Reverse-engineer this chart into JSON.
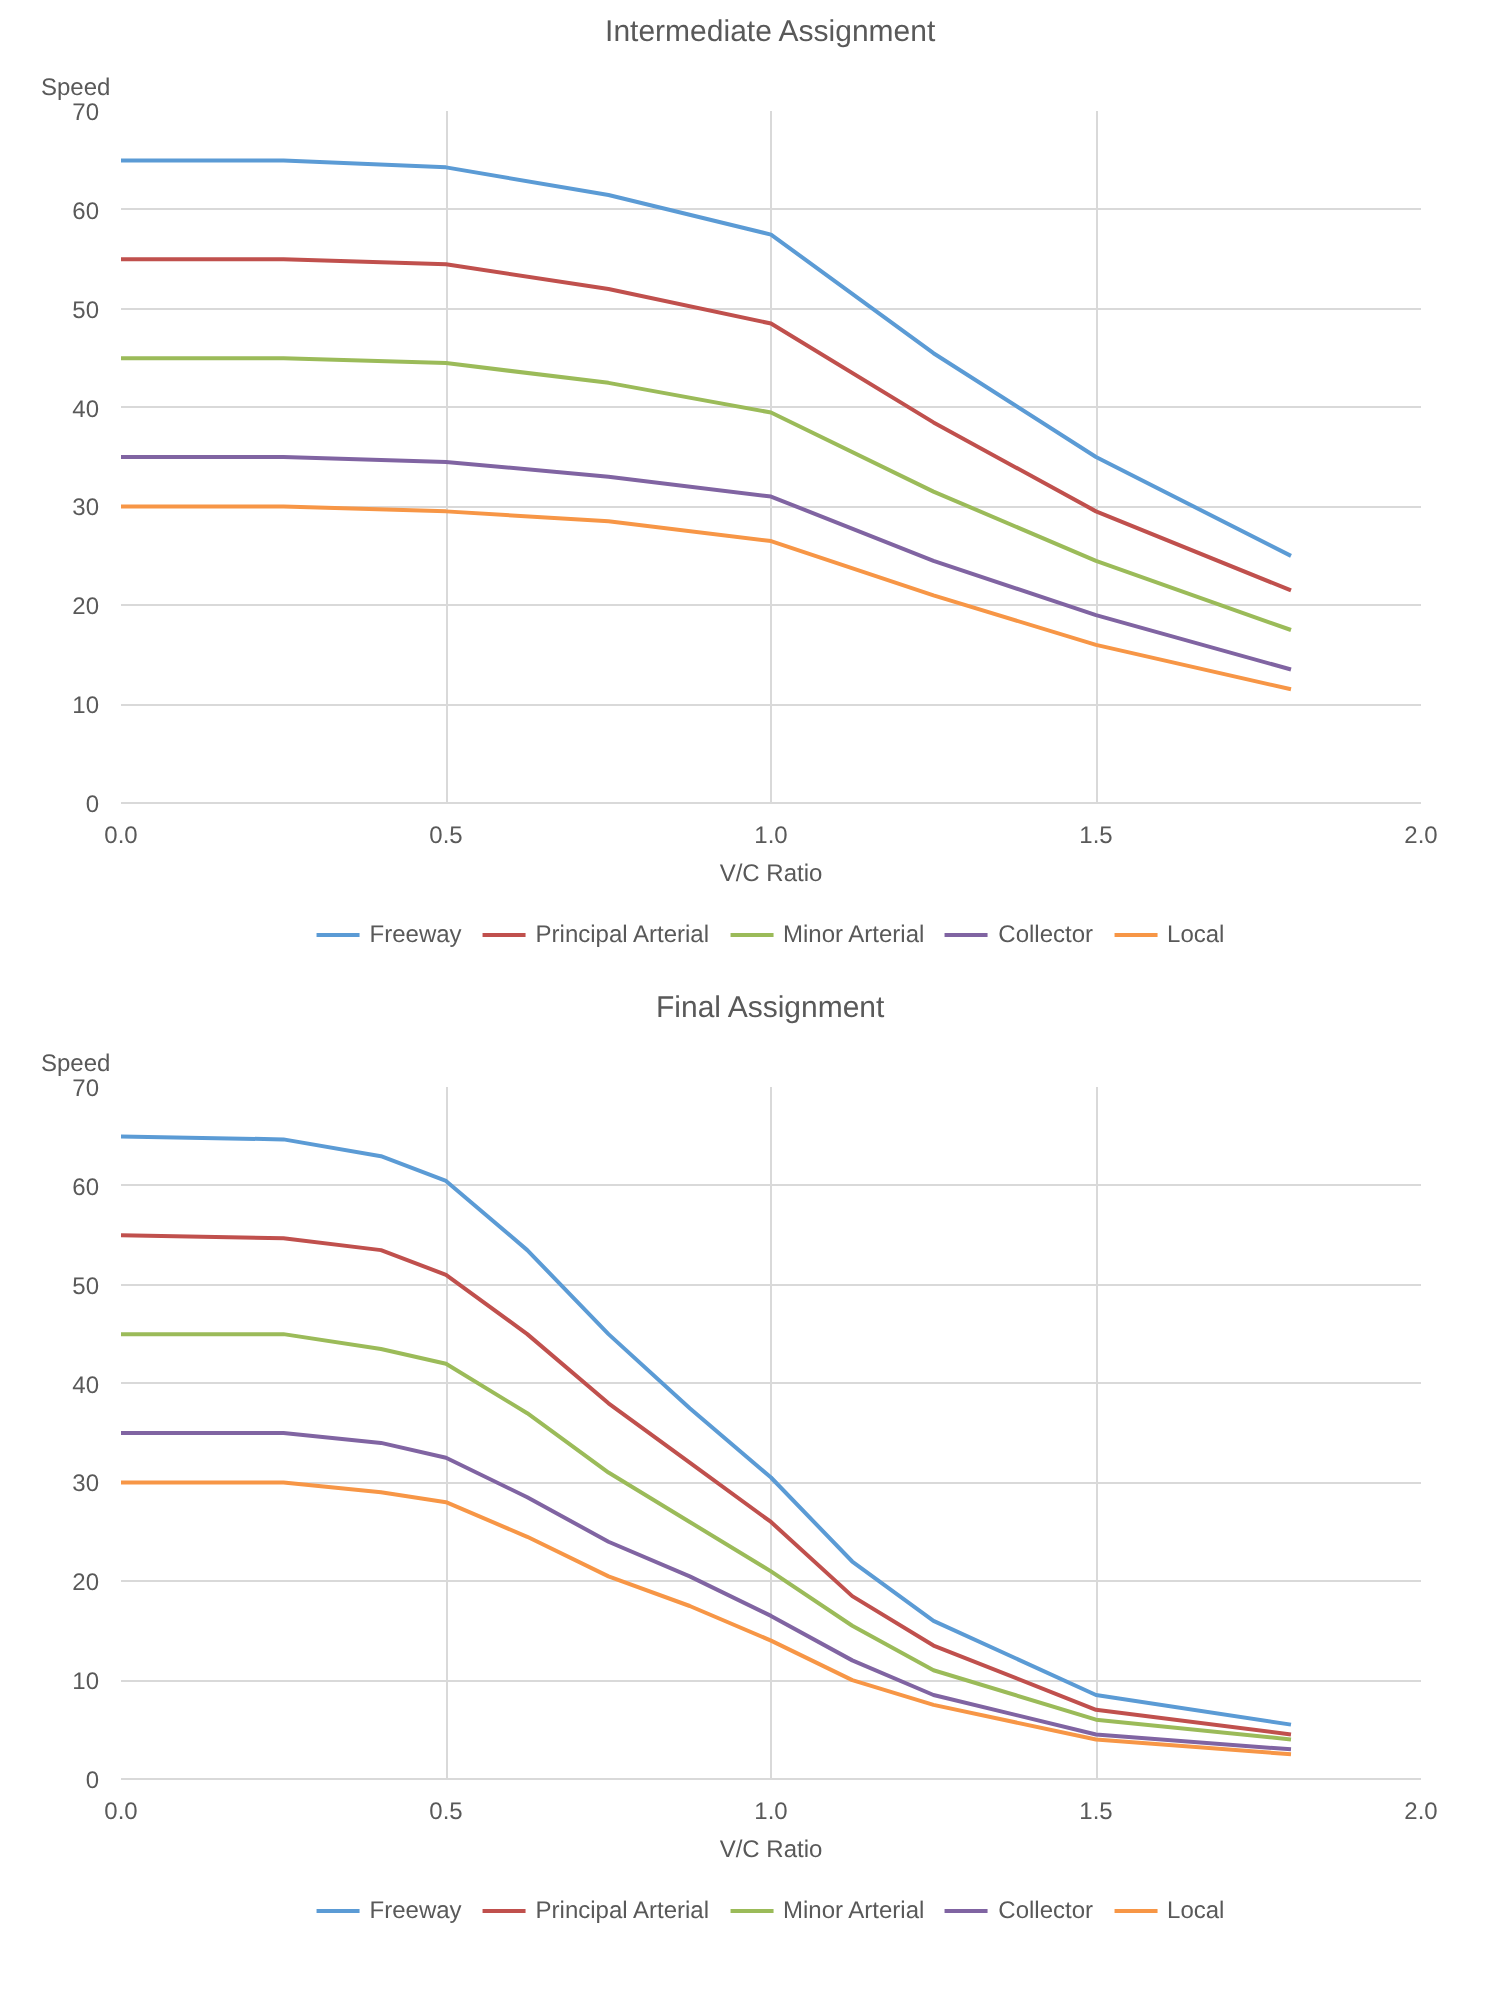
{
  "chart_data": [
    {
      "type": "line",
      "title": "Intermediate Assignment",
      "xlabel": "V/C Ratio",
      "ylabel": "Speed",
      "xlim": [
        0,
        2
      ],
      "ylim": [
        0,
        70
      ],
      "xticks": [
        {
          "value": 0,
          "label": "0.0"
        },
        {
          "value": 0.5,
          "label": "0.5"
        },
        {
          "value": 1,
          "label": "1.0"
        },
        {
          "value": 1.5,
          "label": "1.5"
        },
        {
          "value": 2,
          "label": "2.0"
        }
      ],
      "yticks": [
        0,
        10,
        20,
        30,
        40,
        50,
        60,
        70
      ],
      "grid": true,
      "legend": "bottom",
      "x": [
        0,
        0.25,
        0.5,
        0.75,
        1.0,
        1.25,
        1.5,
        1.8
      ],
      "series": [
        {
          "name": "Freeway",
          "color": "#5b9bd5",
          "values": [
            65,
            65,
            64.3,
            61.5,
            57.5,
            45.5,
            35,
            25
          ]
        },
        {
          "name": "Principal Arterial",
          "color": "#c0504d",
          "values": [
            55,
            55,
            54.5,
            52,
            48.5,
            38.5,
            29.5,
            21.5
          ]
        },
        {
          "name": "Minor Arterial",
          "color": "#9bbb59",
          "values": [
            45,
            45,
            44.5,
            42.5,
            39.5,
            31.5,
            24.5,
            17.5
          ]
        },
        {
          "name": "Collector",
          "color": "#8064a2",
          "values": [
            35,
            35,
            34.5,
            33,
            31,
            24.5,
            19,
            13.5
          ]
        },
        {
          "name": "Local",
          "color": "#f79646",
          "values": [
            30,
            30,
            29.5,
            28.5,
            26.5,
            21,
            16,
            11.5
          ]
        }
      ]
    },
    {
      "type": "line",
      "title": "Final Assignment",
      "xlabel": "V/C Ratio",
      "ylabel": "Speed",
      "xlim": [
        0,
        2
      ],
      "ylim": [
        0,
        70
      ],
      "xticks": [
        {
          "value": 0,
          "label": "0.0"
        },
        {
          "value": 0.5,
          "label": "0.5"
        },
        {
          "value": 1,
          "label": "1.0"
        },
        {
          "value": 1.5,
          "label": "1.5"
        },
        {
          "value": 2,
          "label": "2.0"
        }
      ],
      "yticks": [
        0,
        10,
        20,
        30,
        40,
        50,
        60,
        70
      ],
      "grid": true,
      "legend": "bottom",
      "x": [
        0,
        0.25,
        0.4,
        0.5,
        0.625,
        0.75,
        0.875,
        1.0,
        1.125,
        1.25,
        1.5,
        1.8
      ],
      "series": [
        {
          "name": "Freeway",
          "color": "#5b9bd5",
          "values": [
            65,
            64.7,
            63,
            60.5,
            53.5,
            45,
            37.5,
            30.5,
            22,
            16,
            8.5,
            5.5
          ]
        },
        {
          "name": "Principal Arterial",
          "color": "#c0504d",
          "values": [
            55,
            54.7,
            53.5,
            51,
            45,
            38,
            32,
            26,
            18.5,
            13.5,
            7,
            4.5
          ]
        },
        {
          "name": "Minor Arterial",
          "color": "#9bbb59",
          "values": [
            45,
            45,
            43.5,
            42,
            37,
            31,
            26,
            21,
            15.5,
            11,
            6,
            4
          ]
        },
        {
          "name": "Collector",
          "color": "#8064a2",
          "values": [
            35,
            35,
            34,
            32.5,
            28.5,
            24,
            20.5,
            16.5,
            12,
            8.5,
            4.5,
            3
          ]
        },
        {
          "name": "Local",
          "color": "#f79646",
          "values": [
            30,
            30,
            29,
            28,
            24.5,
            20.5,
            17.5,
            14,
            10,
            7.5,
            4,
            2.5
          ]
        }
      ]
    }
  ]
}
